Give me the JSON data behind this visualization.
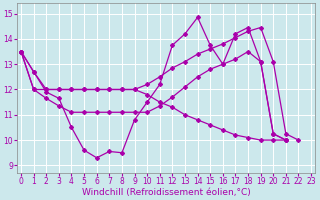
{
  "background_color": "#cce8ec",
  "line_color": "#aa00aa",
  "grid_color": "#ffffff",
  "xlabel": "Windchill (Refroidissement éolien,°C)",
  "xlabel_fontsize": 6.5,
  "yticks": [
    9,
    10,
    11,
    12,
    13,
    14,
    15
  ],
  "xticks": [
    0,
    1,
    2,
    3,
    4,
    5,
    6,
    7,
    8,
    9,
    10,
    11,
    12,
    13,
    14,
    15,
    16,
    17,
    18,
    19,
    20,
    21,
    22,
    23
  ],
  "xlim": [
    -0.3,
    23.3
  ],
  "ylim": [
    8.7,
    15.4
  ],
  "s1": [
    13.5,
    12.7,
    11.9,
    11.65,
    10.5,
    9.6,
    9.3,
    9.55,
    9.5,
    10.8,
    11.5,
    12.2,
    13.75,
    14.2,
    14.85,
    13.75,
    13.0,
    14.2,
    14.45,
    13.1,
    10.25,
    10.0
  ],
  "s2": [
    13.5,
    12.7,
    12.0,
    12.0,
    12.0,
    12.0,
    12.0,
    12.0,
    12.0,
    12.0,
    12.2,
    12.5,
    12.85,
    13.1,
    13.4,
    13.6,
    13.8,
    14.05,
    14.3,
    14.45,
    13.1,
    10.25,
    10.0
  ],
  "s3": [
    13.5,
    12.0,
    11.65,
    11.35,
    11.1,
    11.1,
    11.1,
    11.1,
    11.1,
    11.1,
    11.1,
    11.35,
    11.7,
    12.1,
    12.5,
    12.8,
    13.0,
    13.2,
    13.5,
    13.1,
    10.25,
    10.0
  ],
  "s4": [
    13.5,
    12.0,
    12.0,
    12.0,
    12.0,
    12.0,
    12.0,
    12.0,
    12.0,
    12.0,
    11.8,
    11.5,
    11.3,
    11.0,
    10.8,
    10.6,
    10.4,
    10.2,
    10.1,
    10.0,
    10.0,
    10.0
  ]
}
